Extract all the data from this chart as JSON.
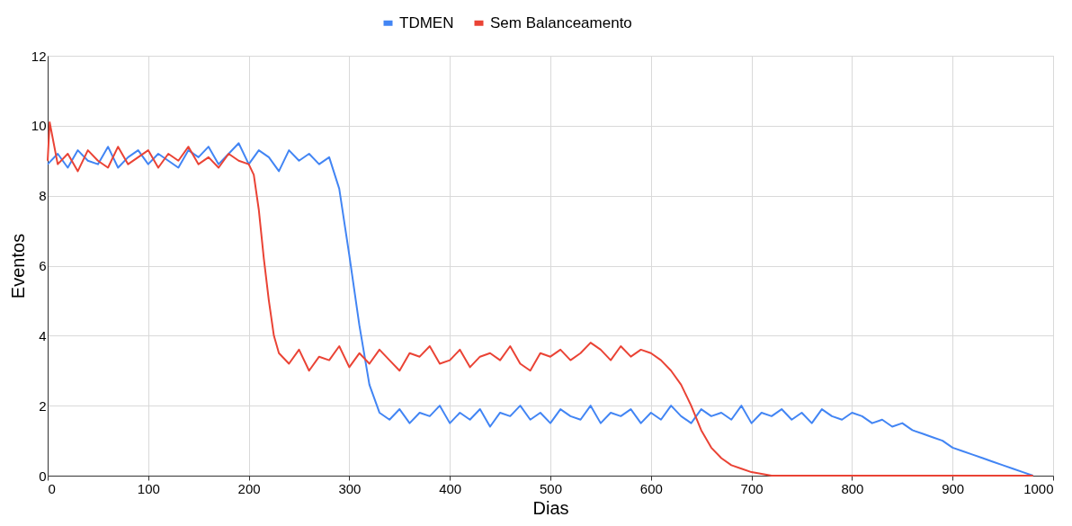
{
  "chart_data": {
    "type": "line",
    "xlabel": "Dias",
    "ylabel": "Eventos",
    "xlim": [
      0,
      1000
    ],
    "xticks": [
      0,
      100,
      200,
      300,
      400,
      500,
      600,
      700,
      800,
      900,
      1000
    ],
    "ylim": [
      0,
      12
    ],
    "yticks": [
      0,
      2,
      4,
      6,
      8,
      10,
      12
    ],
    "grid": true,
    "legend": "top",
    "marker": "none",
    "line_style": "solid",
    "series": [
      {
        "name": "TDMEN",
        "color": "#4285f4",
        "x": [
          0,
          10,
          20,
          30,
          40,
          50,
          60,
          70,
          80,
          90,
          100,
          110,
          120,
          130,
          140,
          150,
          160,
          170,
          180,
          190,
          200,
          210,
          220,
          230,
          240,
          250,
          260,
          270,
          280,
          290,
          300,
          310,
          320,
          330,
          340,
          350,
          360,
          370,
          380,
          390,
          400,
          410,
          420,
          430,
          440,
          450,
          460,
          470,
          480,
          490,
          500,
          510,
          520,
          530,
          540,
          550,
          560,
          570,
          580,
          590,
          600,
          610,
          620,
          630,
          640,
          650,
          660,
          670,
          680,
          690,
          700,
          710,
          720,
          730,
          740,
          750,
          760,
          770,
          780,
          790,
          800,
          810,
          820,
          830,
          840,
          850,
          860,
          870,
          880,
          890,
          900,
          910,
          920,
          930,
          940,
          950,
          960,
          970,
          980
        ],
        "values": [
          8.9,
          9.2,
          8.8,
          9.3,
          9.0,
          8.9,
          9.4,
          8.8,
          9.1,
          9.3,
          8.9,
          9.2,
          9.0,
          8.8,
          9.3,
          9.1,
          9.4,
          8.9,
          9.2,
          9.5,
          8.9,
          9.3,
          9.1,
          8.7,
          9.3,
          9.0,
          9.2,
          8.9,
          9.1,
          8.2,
          6.3,
          4.3,
          2.6,
          1.8,
          1.6,
          1.9,
          1.5,
          1.8,
          1.7,
          2.0,
          1.5,
          1.8,
          1.6,
          1.9,
          1.4,
          1.8,
          1.7,
          2.0,
          1.6,
          1.8,
          1.5,
          1.9,
          1.7,
          1.6,
          2.0,
          1.5,
          1.8,
          1.7,
          1.9,
          1.5,
          1.8,
          1.6,
          2.0,
          1.7,
          1.5,
          1.9,
          1.7,
          1.8,
          1.6,
          2.0,
          1.5,
          1.8,
          1.7,
          1.9,
          1.6,
          1.8,
          1.5,
          1.9,
          1.7,
          1.6,
          1.8,
          1.7,
          1.5,
          1.6,
          1.4,
          1.5,
          1.3,
          1.2,
          1.1,
          1.0,
          0.8,
          0.7,
          0.6,
          0.5,
          0.4,
          0.3,
          0.2,
          0.1,
          0.0
        ]
      },
      {
        "name": "Sem Balanceamento",
        "color": "#ea4335",
        "x": [
          0,
          2,
          10,
          20,
          30,
          40,
          50,
          60,
          70,
          80,
          90,
          100,
          110,
          120,
          130,
          140,
          150,
          160,
          170,
          180,
          190,
          200,
          205,
          210,
          215,
          220,
          225,
          230,
          240,
          250,
          260,
          270,
          280,
          290,
          300,
          310,
          320,
          330,
          340,
          350,
          360,
          370,
          380,
          390,
          400,
          410,
          420,
          430,
          440,
          450,
          460,
          470,
          480,
          490,
          500,
          510,
          520,
          530,
          540,
          550,
          560,
          570,
          580,
          590,
          600,
          610,
          620,
          630,
          640,
          650,
          660,
          670,
          680,
          690,
          700,
          710,
          720,
          980
        ],
        "values": [
          9.0,
          10.1,
          8.9,
          9.2,
          8.7,
          9.3,
          9.0,
          8.8,
          9.4,
          8.9,
          9.1,
          9.3,
          8.8,
          9.2,
          9.0,
          9.4,
          8.9,
          9.1,
          8.8,
          9.2,
          9.0,
          8.9,
          8.6,
          7.6,
          6.2,
          5.0,
          4.0,
          3.5,
          3.2,
          3.6,
          3.0,
          3.4,
          3.3,
          3.7,
          3.1,
          3.5,
          3.2,
          3.6,
          3.3,
          3.0,
          3.5,
          3.4,
          3.7,
          3.2,
          3.3,
          3.6,
          3.1,
          3.4,
          3.5,
          3.3,
          3.7,
          3.2,
          3.0,
          3.5,
          3.4,
          3.6,
          3.3,
          3.5,
          3.8,
          3.6,
          3.3,
          3.7,
          3.4,
          3.6,
          3.5,
          3.3,
          3.0,
          2.6,
          2.0,
          1.3,
          0.8,
          0.5,
          0.3,
          0.2,
          0.1,
          0.05,
          0,
          0
        ]
      }
    ]
  }
}
